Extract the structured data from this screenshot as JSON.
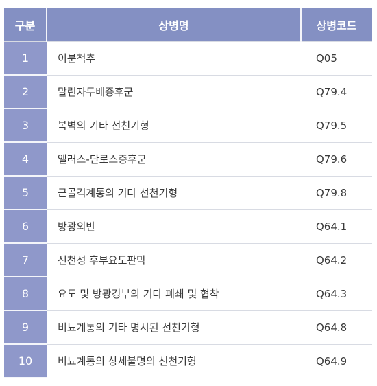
{
  "table": {
    "headers": {
      "number": "구분",
      "name": "상병명",
      "code": "상병코드"
    },
    "rows": [
      {
        "number": "1",
        "name": "이분척추",
        "code": "Q05"
      },
      {
        "number": "2",
        "name": "말린자두배증후군",
        "code": "Q79.4"
      },
      {
        "number": "3",
        "name": "복벽의 기타 선천기형",
        "code": "Q79.5"
      },
      {
        "number": "4",
        "name": "엘러스-단로스증후군",
        "code": "Q79.6"
      },
      {
        "number": "5",
        "name": "근골격계통의 기타 선천기형",
        "code": "Q79.8"
      },
      {
        "number": "6",
        "name": "방광외반",
        "code": "Q64.1"
      },
      {
        "number": "7",
        "name": "선천성 후부요도판막",
        "code": "Q64.2"
      },
      {
        "number": "8",
        "name": "요도 및 방광경부의 기타 폐쇄 및 협착",
        "code": "Q64.3"
      },
      {
        "number": "9",
        "name": "비뇨계통의 기타 명시된 선천기형",
        "code": "Q64.8"
      },
      {
        "number": "10",
        "name": "비뇨계통의 상세불명의 선천기형",
        "code": "Q64.9"
      }
    ],
    "colors": {
      "header_bg": "#8490c3",
      "number_bg": "#8f98ca",
      "row_divider": "#d8dbe3"
    }
  }
}
